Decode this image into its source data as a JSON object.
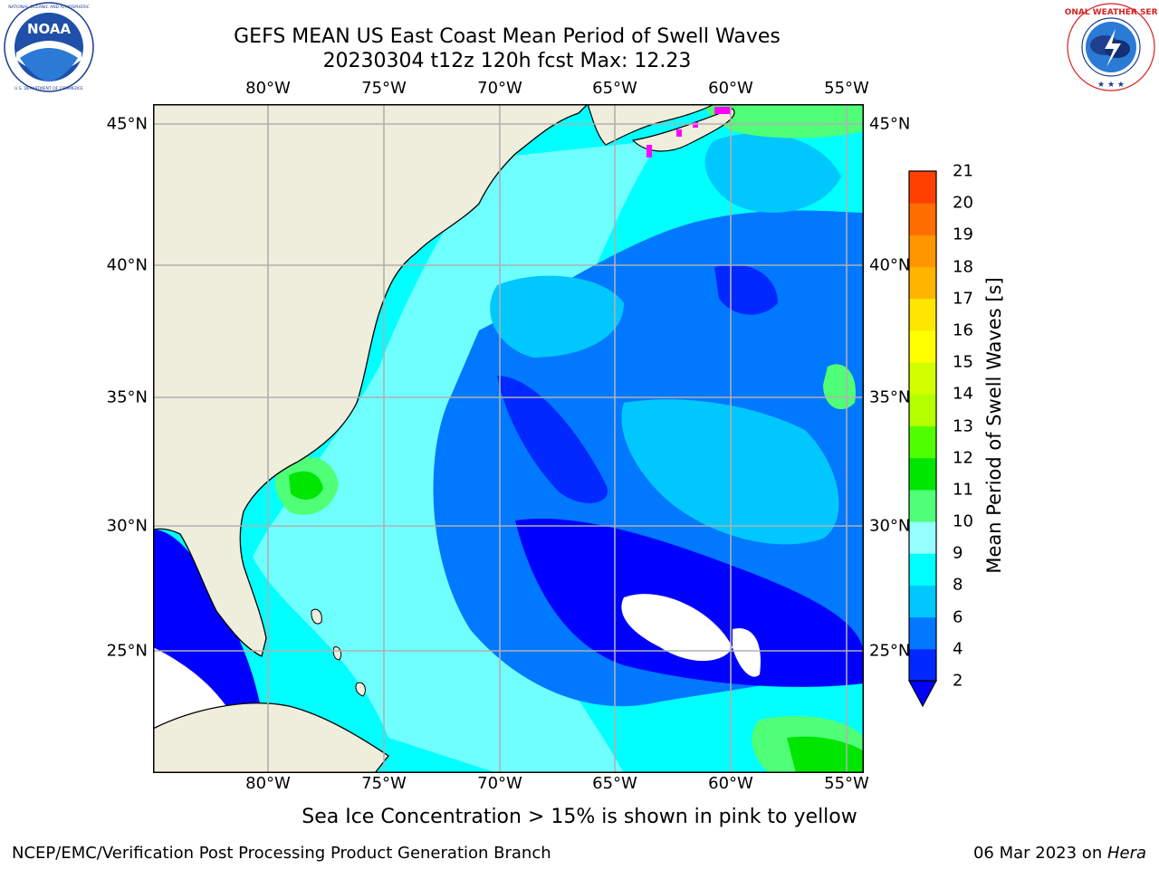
{
  "title": {
    "line1": "GEFS MEAN US East Coast Mean Period of Swell Waves",
    "line2": "20230304 t12z 120h fcst   Max: 12.23"
  },
  "logos": {
    "left": {
      "name": "NOAA",
      "ring_text": "NATIONAL OCEANIC AND ATMOSPHERIC ADMINISTRATION · U.S. DEPARTMENT OF COMMERCE",
      "center_text": "NOAA"
    },
    "right": {
      "name": "National Weather Service",
      "ring_text": "NATIONAL WEATHER SERVICE"
    }
  },
  "map": {
    "lon_ticks": [
      "80°W",
      "75°W",
      "70°W",
      "65°W",
      "60°W",
      "55°W"
    ],
    "lat_ticks": [
      "45°N",
      "40°N",
      "35°N",
      "30°N",
      "25°N"
    ],
    "land_color": "#efeedc",
    "ocean_base": "#00ffff"
  },
  "colorbar": {
    "label": "Mean Period of Swell Waves [s]",
    "ticks": [
      "2",
      "4",
      "6",
      "8",
      "9",
      "10",
      "11",
      "12",
      "13",
      "14",
      "15",
      "16",
      "17",
      "18",
      "19",
      "20",
      "21"
    ],
    "colors": [
      "#0028ff",
      "#0078ff",
      "#00c8ff",
      "#00ffff",
      "#96ffff",
      "#50ff78",
      "#00e600",
      "#50ff00",
      "#b4ff00",
      "#d2ff00",
      "#ffff00",
      "#ffe600",
      "#ffb400",
      "#ff9600",
      "#ff6e00",
      "#ff4000",
      "#ff0000"
    ],
    "extend_color": "#0000ff"
  },
  "footnote": "Sea Ice Concentration > 15% is shown in pink to yellow",
  "footer": {
    "left": "NCEP/EMC/Verification Post Processing Product Generation Branch",
    "right_prefix": "06 Mar 2023 on ",
    "right_italic": "Hera"
  }
}
